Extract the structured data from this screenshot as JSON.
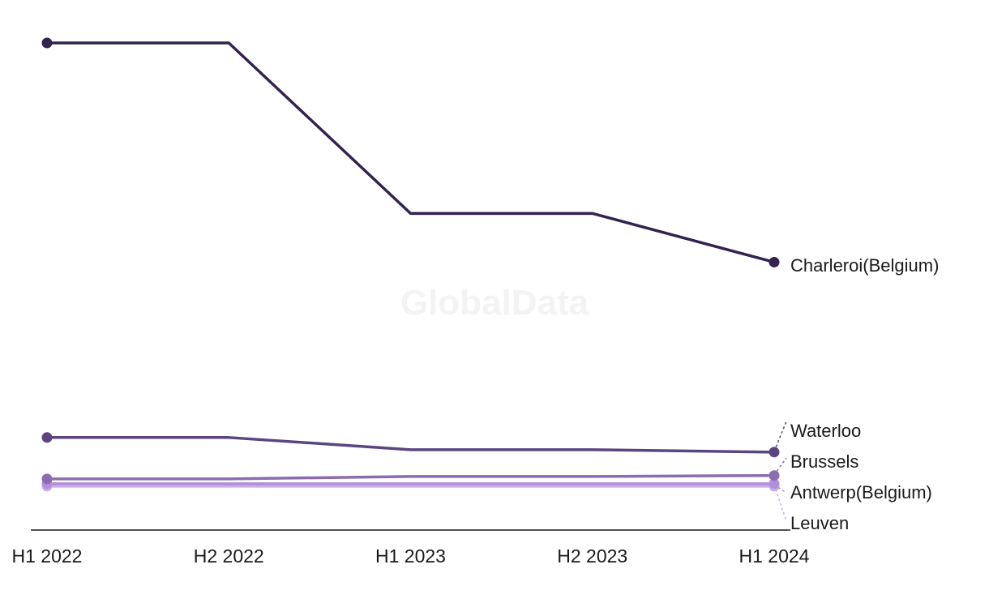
{
  "watermark": "GlobalData",
  "chart_data": {
    "type": "line",
    "title": "",
    "xlabel": "",
    "ylabel": "",
    "categories": [
      "H1 2022",
      "H2 2022",
      "H1 2023",
      "H2 2023",
      "H1 2024"
    ],
    "ylim": [
      0,
      100
    ],
    "grid": false,
    "legend": "end-of-line labels",
    "series": [
      {
        "name": "Charleroi(Belgium)",
        "color": "#34224f",
        "values": [
          100,
          100,
          65,
          65,
          55
        ]
      },
      {
        "name": "Waterloo",
        "color": "#5b4580",
        "values": [
          19,
          19,
          16.5,
          16.5,
          16
        ]
      },
      {
        "name": "Brussels",
        "color": "#8c6cb0",
        "values": [
          10.5,
          10.5,
          11,
          11,
          11.2
        ]
      },
      {
        "name": "Antwerp(Belgium)",
        "color": "#b38fd9",
        "values": [
          9.5,
          9.5,
          9.5,
          9.5,
          9.5
        ]
      },
      {
        "name": "Leuven",
        "color": "#c9afe8",
        "values": [
          9,
          9,
          9,
          9,
          9
        ]
      }
    ]
  }
}
